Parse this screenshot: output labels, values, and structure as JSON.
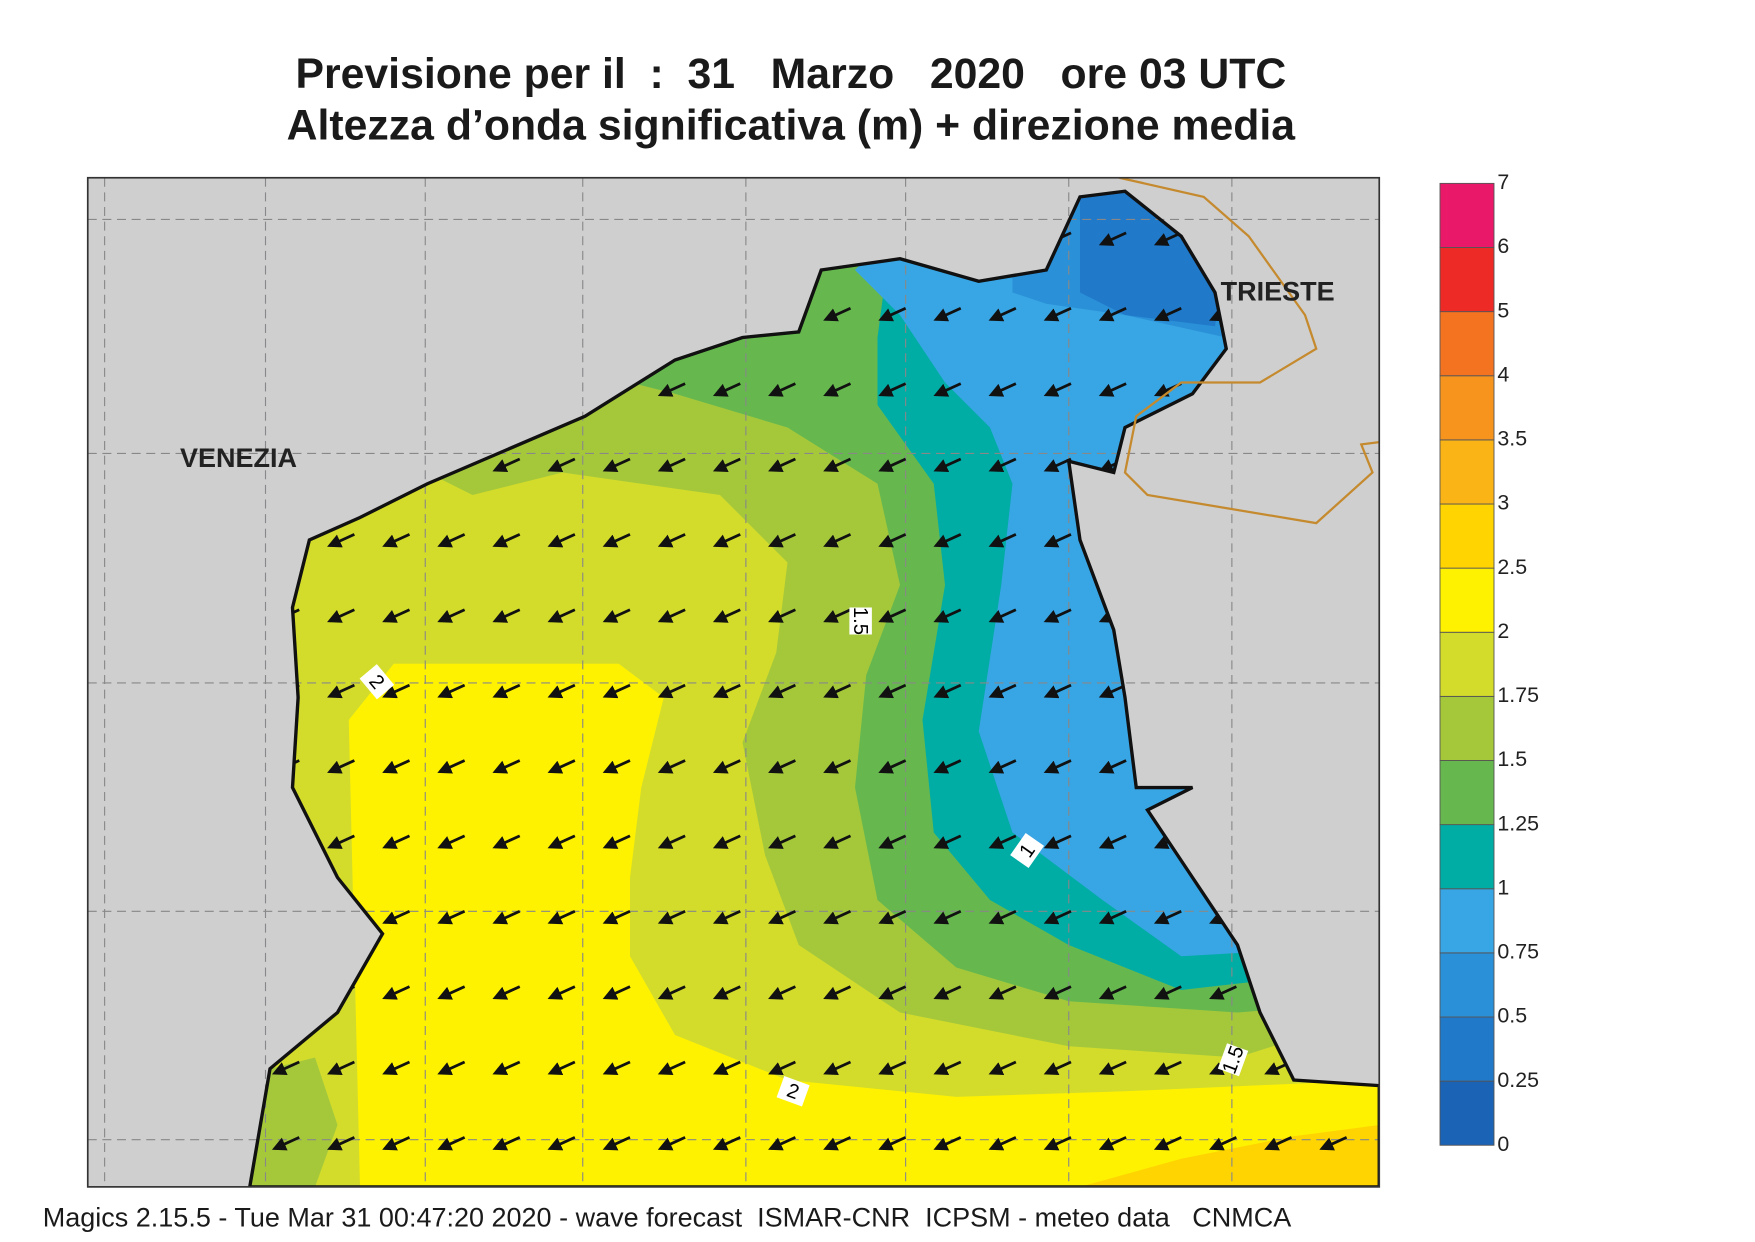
{
  "header": {
    "title": "Previsione per il  :  31   Marzo   2020   ore 03 UTC",
    "subtitle": "Altezza d’onda significativa (m) + direzione media"
  },
  "map": {
    "cities": [
      "VENEZIA",
      "TRIESTE"
    ],
    "contour_labels": [
      "1.5",
      "2",
      "1",
      "2",
      "1.5"
    ]
  },
  "legend": {
    "levels": [
      0,
      0.25,
      0.5,
      0.75,
      1,
      1.25,
      1.5,
      1.75,
      2,
      2.5,
      3,
      3.5,
      4,
      5,
      6,
      7
    ],
    "colors": [
      "#1b63b5",
      "#2079c9",
      "#2a90d8",
      "#38a5e4",
      "#00ada5",
      "#66b84e",
      "#a5c83b",
      "#d3dc2b",
      "#fff200",
      "#ffd400",
      "#fbb416",
      "#f7941d",
      "#f37321",
      "#ed2a25",
      "#ea1869"
    ]
  },
  "footer": "Magics 2.15.5 - Tue Mar 31 00:47:20 2020 - wave forecast  ISMAR-CNR  ICPSM - meteo data   CNMCA"
}
